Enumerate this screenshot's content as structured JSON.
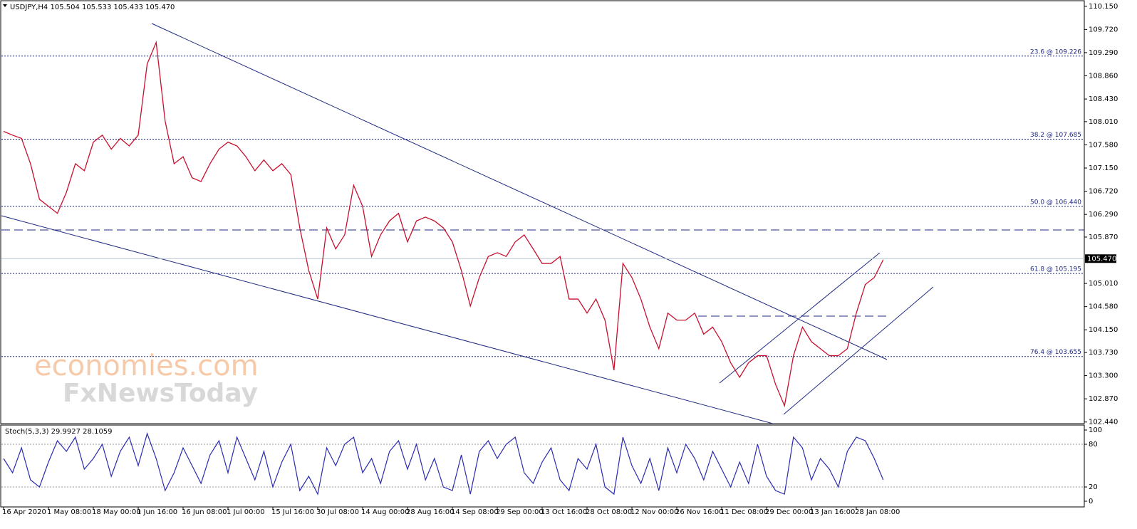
{
  "chart_data": {
    "type": "line",
    "header": "USDJPY,H4  105.504 105.533 105.433 105.470",
    "watermark": [
      "economies.com",
      "FxNewsToday"
    ],
    "categories": [
      "16 Apr 2020",
      null,
      null,
      null,
      null,
      "1 May 08:00",
      null,
      null,
      null,
      null,
      "18 May 00:00",
      null,
      null,
      null,
      null,
      "1 Jun 16:00",
      null,
      null,
      null,
      null,
      "16 Jun 08:00",
      null,
      null,
      null,
      null,
      "1 Jul 00:00",
      null,
      null,
      null,
      null,
      "15 Jul 16:00",
      null,
      null,
      null,
      null,
      "30 Jul 08:00",
      null,
      null,
      null,
      null,
      "14 Aug 00:00",
      null,
      null,
      null,
      null,
      "28 Aug 16:00",
      null,
      null,
      null,
      null,
      "14 Sep 08:00",
      null,
      null,
      null,
      null,
      "29 Sep 00:00",
      null,
      null,
      null,
      null,
      "13 Oct 16:00",
      null,
      null,
      null,
      null,
      "28 Oct 08:00",
      null,
      null,
      null,
      null,
      "12 Nov 00:00",
      null,
      null,
      null,
      null,
      "26 Nov 16:00",
      null,
      null,
      null,
      null,
      "11 Dec 08:00",
      null,
      null,
      null,
      null,
      "29 Dec 00:00",
      null,
      null,
      null,
      null,
      "13 Jan 16:00",
      null,
      null,
      null,
      null,
      "28 Jan 08:00",
      null,
      null,
      null
    ],
    "series": [
      {
        "color": "#c8102e",
        "values": [
          107.83,
          107.76,
          107.7,
          107.23,
          106.57,
          106.44,
          106.31,
          106.7,
          107.23,
          107.1,
          107.63,
          107.76,
          107.5,
          107.7,
          107.56,
          107.76,
          109.08,
          109.48,
          108.02,
          107.23,
          107.36,
          106.97,
          106.9,
          107.23,
          107.5,
          107.63,
          107.56,
          107.36,
          107.1,
          107.3,
          107.1,
          107.23,
          107.03,
          106.04,
          105.25,
          104.72,
          106.04,
          105.65,
          105.91,
          106.83,
          106.44,
          105.51,
          105.91,
          106.17,
          106.31,
          105.78,
          106.17,
          106.24,
          106.17,
          106.04,
          105.78,
          105.25,
          104.59,
          105.12,
          105.51,
          105.58,
          105.51,
          105.78,
          105.91,
          105.65,
          105.38,
          105.38,
          105.51,
          104.72,
          104.72,
          104.46,
          104.72,
          104.33,
          103.4,
          105.38,
          105.12,
          104.72,
          104.2,
          103.8,
          104.46,
          104.33,
          104.33,
          104.46,
          104.07,
          104.2,
          103.93,
          103.54,
          103.27,
          103.54,
          103.67,
          103.67,
          103.14,
          102.74,
          103.67,
          104.2,
          103.93,
          103.8,
          103.67,
          103.67,
          103.8,
          104.46,
          104.99,
          105.12,
          105.45
        ]
      }
    ],
    "ylim": [
      102.41,
      110.24
    ],
    "yticks": [
      {
        "value": 110.15,
        "label": "110.150"
      },
      {
        "value": 109.72,
        "label": "109.720"
      },
      {
        "value": 109.29,
        "label": "109.290"
      },
      {
        "value": 108.86,
        "label": "108.860"
      },
      {
        "value": 108.43,
        "label": "108.430"
      },
      {
        "value": 108.01,
        "label": "108.010"
      },
      {
        "value": 107.58,
        "label": "107.580"
      },
      {
        "value": 107.15,
        "label": "107.150"
      },
      {
        "value": 106.72,
        "label": "106.720"
      },
      {
        "value": 106.29,
        "label": "106.290"
      },
      {
        "value": 105.87,
        "label": "105.870"
      },
      {
        "value": 105.01,
        "label": "105.010"
      },
      {
        "value": 104.58,
        "label": "104.580"
      },
      {
        "value": 104.15,
        "label": "104.150"
      },
      {
        "value": 103.73,
        "label": "103.730"
      },
      {
        "value": 103.3,
        "label": "103.300"
      },
      {
        "value": 102.87,
        "label": "102.870"
      },
      {
        "value": 102.44,
        "label": "102.440"
      }
    ],
    "last_price": {
      "value": 105.47,
      "label": "105.470"
    },
    "fib_levels": [
      {
        "value": 109.226,
        "label": "23.6 @ 109.226"
      },
      {
        "value": 107.685,
        "label": "38.2 @ 107.685"
      },
      {
        "value": 106.44,
        "label": "50.0 @ 106.440"
      },
      {
        "value": 105.195,
        "label": "61.8 @ 105.195"
      },
      {
        "value": 103.655,
        "label": "76.4 @ 103.655"
      }
    ],
    "oscillator": {
      "title": "Stoch(5,3,3) 29.9927 28.1059",
      "color": "#2b2bb0",
      "values": [
        60,
        40,
        75,
        30,
        20,
        55,
        85,
        70,
        90,
        45,
        60,
        80,
        35,
        70,
        90,
        50,
        95,
        60,
        15,
        40,
        75,
        50,
        25,
        65,
        85,
        40,
        90,
        60,
        30,
        70,
        20,
        55,
        80,
        15,
        35,
        10,
        75,
        50,
        80,
        90,
        40,
        60,
        25,
        70,
        85,
        45,
        80,
        30,
        60,
        20,
        15,
        65,
        10,
        70,
        85,
        60,
        80,
        90,
        40,
        25,
        55,
        75,
        30,
        15,
        60,
        45,
        80,
        20,
        10,
        90,
        50,
        25,
        60,
        15,
        75,
        40,
        80,
        60,
        30,
        70,
        45,
        20,
        55,
        25,
        80,
        35,
        15,
        10,
        90,
        75,
        30,
        60,
        45,
        20,
        70,
        90,
        85,
        60,
        30
      ],
      "ylim": [
        -8,
        106
      ],
      "yticks": [
        100,
        80,
        20,
        0
      ],
      "levels": [
        80,
        20
      ]
    }
  }
}
